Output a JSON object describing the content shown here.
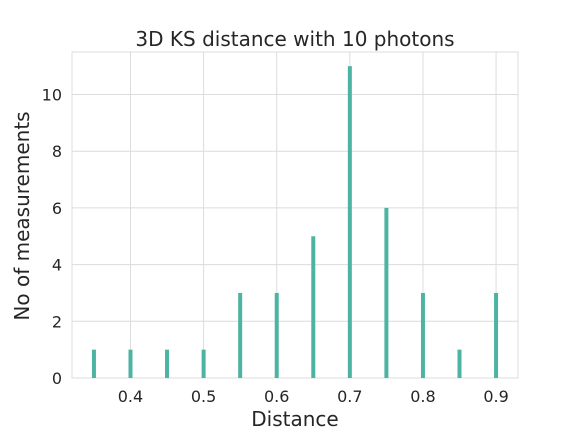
{
  "chart_data": {
    "type": "bar",
    "title": "3D KS distance with 10 photons",
    "xlabel": "Distance",
    "ylabel": "No of measurements",
    "x": [
      0.35,
      0.4,
      0.45,
      0.5,
      0.55,
      0.6,
      0.65,
      0.7,
      0.75,
      0.8,
      0.85,
      0.9
    ],
    "values": [
      1,
      1,
      1,
      1,
      3,
      3,
      5,
      11,
      6,
      3,
      1,
      3
    ],
    "xlim": [
      0.32,
      0.93
    ],
    "ylim": [
      0,
      11.5
    ],
    "xticks": [
      0.4,
      0.5,
      0.6,
      0.7,
      0.8,
      0.9
    ],
    "xtick_labels": [
      "0.4",
      "0.5",
      "0.6",
      "0.7",
      "0.8",
      "0.9"
    ],
    "yticks": [
      0,
      2,
      4,
      6,
      8,
      10
    ],
    "ytick_labels": [
      "0",
      "2",
      "4",
      "6",
      "8",
      "10"
    ],
    "grid": true,
    "bar_color": "#4db3a2"
  }
}
